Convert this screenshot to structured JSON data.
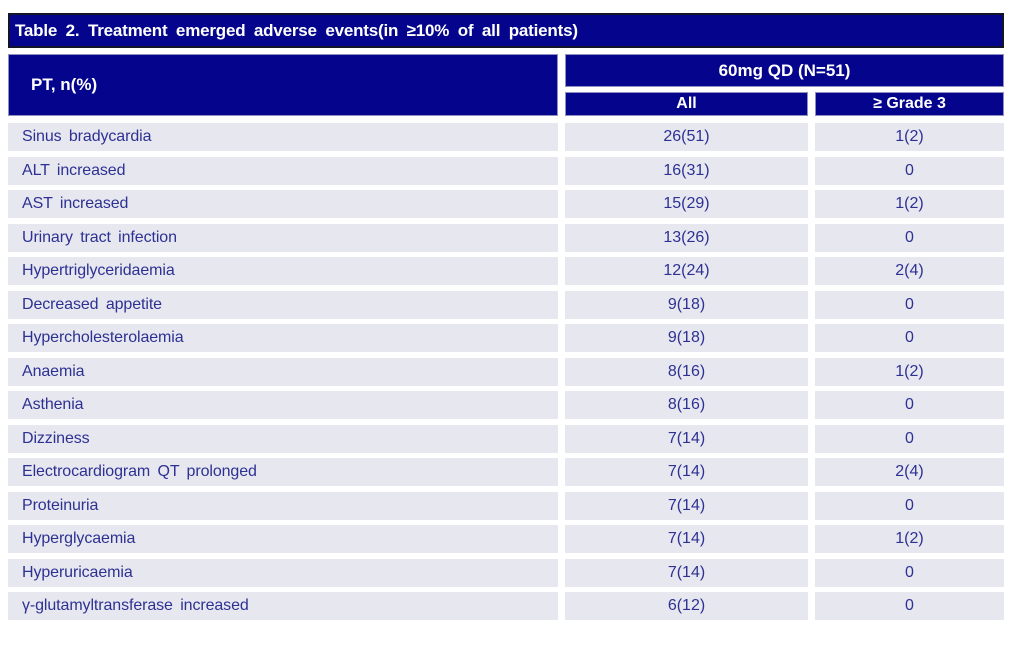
{
  "title": "Table 2. Treatment emerged adverse events(in ≥10% of all patients)",
  "table": {
    "pt_header": "PT, n(%)",
    "dose_group_header": "60mg QD (N=51)",
    "sub_headers": {
      "all": "All",
      "grade3": "≥ Grade 3"
    },
    "rows": [
      {
        "pt": "Sinus bradycardia",
        "all": "26(51)",
        "grade3": "1(2)"
      },
      {
        "pt": "ALT increased",
        "all": "16(31)",
        "grade3": "0"
      },
      {
        "pt": "AST increased",
        "all": "15(29)",
        "grade3": "1(2)"
      },
      {
        "pt": "Urinary tract infection",
        "all": "13(26)",
        "grade3": "0"
      },
      {
        "pt": "Hypertriglyceridaemia",
        "all": "12(24)",
        "grade3": "2(4)"
      },
      {
        "pt": "Decreased appetite",
        "all": "9(18)",
        "grade3": "0"
      },
      {
        "pt": "Hypercholesterolaemia",
        "all": "9(18)",
        "grade3": "0"
      },
      {
        "pt": "Anaemia",
        "all": "8(16)",
        "grade3": "1(2)"
      },
      {
        "pt": "Asthenia",
        "all": "8(16)",
        "grade3": "0"
      },
      {
        "pt": "Dizziness",
        "all": "7(14)",
        "grade3": "0"
      },
      {
        "pt": "Electrocardiogram QT prolonged",
        "all": "7(14)",
        "grade3": "2(4)"
      },
      {
        "pt": "Proteinuria",
        "all": "7(14)",
        "grade3": "0"
      },
      {
        "pt": "Hyperglycaemia",
        "all": "7(14)",
        "grade3": "1(2)"
      },
      {
        "pt": "Hyperuricaemia",
        "all": "7(14)",
        "grade3": "0"
      },
      {
        "pt": "γ-glutamyltransferase increased",
        "all": "6(12)",
        "grade3": "0"
      }
    ],
    "colors": {
      "header_bg": "#04048c",
      "header_text": "#ffffff",
      "row_bg": "#e7e7f0",
      "row_text": "#2d3192",
      "title_border": "#141428"
    }
  }
}
